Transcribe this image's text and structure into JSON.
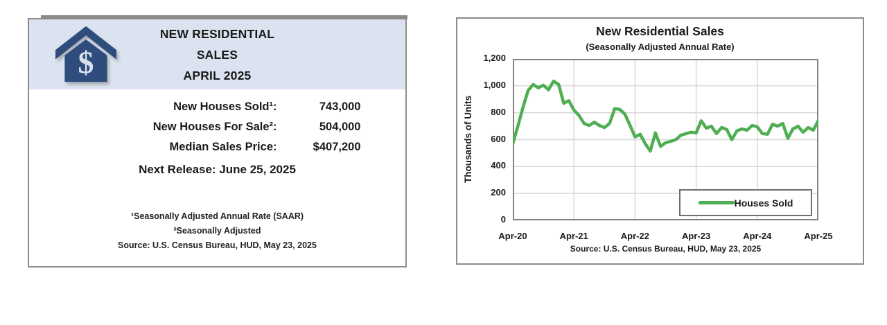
{
  "left_card": {
    "title_lines": [
      "NEW RESIDENTIAL",
      "SALES",
      "APRIL 2025"
    ],
    "icon": {
      "name": "house-dollar-icon",
      "symbol": "$",
      "navy": "#2e4d7c",
      "light": "#d9e1f0"
    },
    "header_bg": "#dbe3f0",
    "stats": [
      {
        "label": "New Houses Sold¹:",
        "value": "743,000"
      },
      {
        "label": "New Houses For Sale²:",
        "value": "504,000"
      },
      {
        "label": "Median Sales Price:",
        "value": "$407,200"
      }
    ],
    "next_release": "Next Release:  June 25, 2025",
    "footnotes": [
      "¹Seasonally Adjusted Annual Rate (SAAR)",
      "²Seasonally Adjusted",
      "Source:  U.S. Census Bureau, HUD, May 23, 2025"
    ]
  },
  "chart_data": {
    "type": "line",
    "title": "New Residential Sales",
    "subtitle": "(Seasonally Adjusted Annual Rate)",
    "ylabel": "Thousands of Units",
    "xlabel": "",
    "legend_label": "Houses Sold",
    "legend_position": "bottom-right-inside",
    "source": "Source:  U.S. Census Bureau, HUD, May 23, 2025",
    "line_color": "#4fae52",
    "grid": true,
    "ylim": [
      0,
      1200
    ],
    "y_ticks": [
      0,
      200,
      400,
      600,
      800,
      1000,
      1200
    ],
    "y_tick_labels": [
      "0",
      "200",
      "400",
      "600",
      "800",
      "1,000",
      "1,200"
    ],
    "x_tick_labels": [
      "Apr-20",
      "Apr-21",
      "Apr-22",
      "Apr-23",
      "Apr-24",
      "Apr-25"
    ],
    "frequency": "monthly",
    "x": [
      "Apr-20",
      "May-20",
      "Jun-20",
      "Jul-20",
      "Aug-20",
      "Sep-20",
      "Oct-20",
      "Nov-20",
      "Dec-20",
      "Jan-21",
      "Feb-21",
      "Mar-21",
      "Apr-21",
      "May-21",
      "Jun-21",
      "Jul-21",
      "Aug-21",
      "Sep-21",
      "Oct-21",
      "Nov-21",
      "Dec-21",
      "Jan-22",
      "Feb-22",
      "Mar-22",
      "Apr-22",
      "May-22",
      "Jun-22",
      "Jul-22",
      "Aug-22",
      "Sep-22",
      "Oct-22",
      "Nov-22",
      "Dec-22",
      "Jan-23",
      "Feb-23",
      "Mar-23",
      "Apr-23",
      "May-23",
      "Jun-23",
      "Jul-23",
      "Aug-23",
      "Sep-23",
      "Oct-23",
      "Nov-23",
      "Dec-23",
      "Jan-24",
      "Feb-24",
      "Mar-24",
      "Apr-24",
      "May-24",
      "Jun-24",
      "Jul-24",
      "Aug-24",
      "Sep-24",
      "Oct-24",
      "Nov-24",
      "Dec-24",
      "Jan-25",
      "Feb-25",
      "Mar-25",
      "Apr-25"
    ],
    "values": [
      570,
      700,
      840,
      965,
      1010,
      985,
      1005,
      970,
      1035,
      1010,
      870,
      890,
      820,
      780,
      720,
      705,
      730,
      705,
      690,
      720,
      830,
      825,
      790,
      707,
      620,
      640,
      570,
      515,
      650,
      550,
      577,
      587,
      600,
      633,
      645,
      655,
      650,
      740,
      685,
      700,
      645,
      690,
      675,
      600,
      665,
      680,
      670,
      705,
      695,
      645,
      640,
      715,
      700,
      720,
      610,
      680,
      700,
      655,
      690,
      670,
      743
    ]
  }
}
